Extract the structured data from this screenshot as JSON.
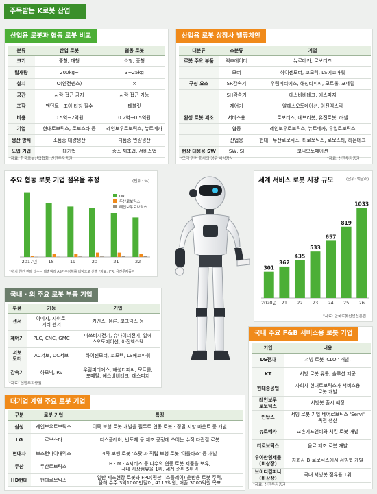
{
  "header": {
    "title": "주목받는 K로봇 산업"
  },
  "compare": {
    "title": "산업용 로봇과 협동 로봇 비교",
    "headers": [
      "분류",
      "산업 로봇",
      "협동 로봇"
    ],
    "rows": [
      [
        "크기",
        "중형, 대형",
        "소형, 중형"
      ],
      [
        "탑재량",
        "200kg~",
        "3~25kg"
      ],
      [
        "설치",
        "O(안전펜스)",
        "×"
      ],
      [
        "공간",
        "사람 접근 금지",
        "사람 접근 가능"
      ],
      [
        "조작",
        "펜던트 · 조이 티칭 필수",
        "태블릿"
      ],
      [
        "비용",
        "0.5억~2억원",
        "0.2억~0.5억원"
      ],
      [
        "기업",
        "현대로보틱스, 로보스타 등",
        "레인보우로보틱스, 뉴로메카"
      ],
      [
        "생산 방식",
        "소품종 대량생산",
        "다품종 변량생산"
      ],
      [
        "도입 기업",
        "대기업",
        "중소 제조업, 서비스업"
      ]
    ],
    "note": "*자료: 한국로봇산업협회, 신한투자증권"
  },
  "valuechain": {
    "title": "산업용 로봇 상장사 밸류체인",
    "headers": [
      "대분류",
      "소분류",
      "기업"
    ],
    "rows": [
      [
        "로봇 주요 부품",
        "액추에이터",
        "뉴로메카, 로보티즈"
      ],
      [
        "",
        "모터",
        "하이젠모터, 코모텍, LS에코파워"
      ],
      [
        "구성 요소",
        "SR감속기",
        "우림피티에스, 해성티피씨, 모트롤, 포메탈"
      ],
      [
        "",
        "SH감속기",
        "에스비비테크, 에스피지"
      ],
      [
        "",
        "제어기",
        "알에스오토메이션, 아진엑스텍"
      ],
      [
        "완성 로봇 제조",
        "서비스용",
        "로보티즈, 에브리봇, 유진로봇, 러셀"
      ],
      [
        "",
        "협동",
        "레인보우로보틱스, 뉴로메카, 유일로보틱스"
      ],
      [
        "",
        "산업용",
        "현대 · 두산로보틱스, 티로보틱스, 로보스타, 라온테크"
      ],
      [
        "현장 대응용 SW",
        "SW, SI",
        "코닉오토메이션"
      ]
    ],
    "note_left": "*모터 관련 회사의 경우 비상장사",
    "note_right": "*자료: 신한투자증권"
  },
  "share_chart": {
    "title": "주요 협동 로봇 기업 점유율 추정",
    "unit": "(단위: %)",
    "note": "*각 사 연간 판매 대수는 매출액과 ASP 추정치를 바탕으로 산출  *자료: IFR, 유진투자증권",
    "colors": {
      "ur": "#4caf36",
      "doosan": "#f08a1a",
      "rainbow": "#9a8f7f"
    }
  },
  "chart_data": [
    {
      "type": "bar",
      "categories": [
        "2017년",
        "18",
        "19",
        "20",
        "21",
        "22"
      ],
      "series": [
        {
          "name": "UR",
          "values": [
            59,
            49,
            46,
            45,
            40,
            36
          ]
        },
        {
          "name": "두산로보틱스",
          "values": [
            1,
            3,
            3,
            4,
            4,
            3
          ]
        },
        {
          "name": "레인보우로보틱스",
          "values": [
            0.2,
            0.3,
            0.5,
            0.5,
            1,
            1
          ]
        }
      ],
      "ylim": [
        0,
        60
      ]
    },
    {
      "type": "bar",
      "categories": [
        "2020년",
        "21",
        "22",
        "23",
        "24",
        "25",
        "26"
      ],
      "values": [
        301,
        362,
        435,
        533,
        657,
        819,
        1033
      ],
      "ylim": [
        0,
        1100
      ]
    }
  ],
  "market_chart": {
    "title": "세계 서비스 로봇 시장 규모",
    "unit": "(단위: 억달러)",
    "note": "*자료: 한국로봇산업진흥원",
    "color": "#4caf36"
  },
  "parts": {
    "title": "국내 · 외 주요 로봇 부품 기업",
    "headers": [
      "부품",
      "기능",
      "기업"
    ],
    "rows": [
      [
        "센서",
        "이미지, 자이로,\n거리 센서",
        "키엔스, 옴론, 코그넥스 등"
      ],
      [
        "제어기",
        "PLC, CNC, GMC",
        "미쓰비시전기, 슈나이더전기, 알에\n스오토메이션, 아진엑스텍"
      ],
      [
        "서보\n모터",
        "AC서보, DC서보",
        "하이젠모터, 코모텍, LS에코파워"
      ],
      [
        "감속기",
        "하모닉, RV",
        "우림피티에스, 해성티피씨, 모트롤,\n포메탈, 에스비비테크, 에스피지"
      ]
    ],
    "note": "*자료: 신한투자증권"
  },
  "fnb": {
    "title": "국내 주요 F&B 서비스용 로봇 기업",
    "headers": [
      "기업",
      "내용"
    ],
    "rows": [
      [
        "LG전자",
        "서빙 로봇 'CLOi' 개발,"
      ],
      [
        "KT",
        "서빙 로봇 유통, 솔루션 제공"
      ],
      [
        "현대중공업",
        "자회사 현대로보틱스가 서비스용\n로봇 개발"
      ],
      [
        "레인보우\n로보틱스",
        "서빙봇 출시 예정"
      ],
      [
        "인탑스",
        "서빙 로봇 기업 베어로보틱스 'Servi'\n독점 생산"
      ],
      [
        "뉴로메카",
        "교촌에프앤비와 치킨 로봇 개발"
      ],
      [
        "티로보틱스",
        "음료 제조 로봇 개발"
      ],
      [
        "우아한형제들\n(비상장)",
        "자회사 B-로보틱스에서 서빙봇 개발"
      ],
      [
        "브이디컴퍼니\n(비상장)",
        "국내 서빙봇 점유율 1위"
      ]
    ],
    "note": "*자료: 신한투자증권"
  },
  "chaebol": {
    "title": "대기업 계열 주요 로봇 기업",
    "headers": [
      "구분",
      "로봇 기업",
      "특징"
    ],
    "rows": [
      [
        "삼성",
        "레인보우로보틱스",
        "이족 보행 로봇 개발을 필두로 협동 로봇 · 정밀 지향 마운트 등 개발"
      ],
      [
        "LG",
        "로보스타",
        "디스플레이, 반도체 등 제조 공정에 쓰이는 수직 다관절 로봇"
      ],
      [
        "현대차",
        "보스턴다이내믹스",
        "4족 보행 로봇 '스팟'과 직립 보행 로봇 '아틀라스' 등 개발"
      ],
      [
        "두산",
        "두산로보틱스",
        "H · M · A시리즈 등 다수의 협동 로봇 제품을 보유,\n국내 시장점유율 1위, 세계 순위 5위권"
      ],
      [
        "HD현대",
        "현대로보틱스",
        "일반 제조현장 로봇과 FPD(평판디스플레이) 운반용 로봇 주력,\n올해 수주 3억1000만달러, 4115억원, 매출 3000억원 목표"
      ]
    ]
  }
}
